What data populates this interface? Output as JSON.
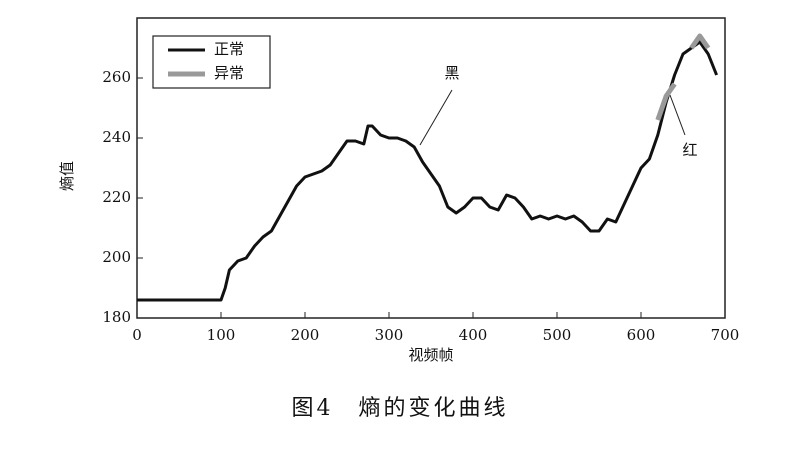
{
  "chart_data": {
    "type": "line",
    "title": "图4　熵的变化曲线",
    "x_label": "视频帧",
    "y_label": "熵值",
    "annotations": [
      "黑",
      "红"
    ],
    "x": [
      0,
      50,
      100,
      105,
      110,
      120,
      130,
      140,
      150,
      160,
      170,
      180,
      190,
      200,
      210,
      220,
      230,
      240,
      250,
      260,
      270,
      275,
      280,
      290,
      300,
      310,
      320,
      330,
      340,
      350,
      360,
      370,
      380,
      390,
      400,
      410,
      420,
      430,
      440,
      450,
      460,
      470,
      480,
      490,
      500,
      510,
      520,
      530,
      540,
      550,
      560,
      570,
      580,
      590,
      600,
      610,
      620,
      630,
      640,
      650,
      660,
      670,
      680,
      690
    ],
    "series": [
      {
        "name": "正常",
        "color": "#111111",
        "values": [
          186,
          186,
          186,
          190,
          196,
          199,
          200,
          204,
          207,
          209,
          214,
          219,
          224,
          227,
          228,
          229,
          231,
          235,
          239,
          239,
          238,
          244,
          244,
          241,
          240,
          240,
          239,
          237,
          232,
          228,
          224,
          217,
          215,
          217,
          220,
          220,
          217,
          216,
          221,
          220,
          217,
          213,
          214,
          213,
          214,
          213,
          214,
          212,
          209,
          209,
          213,
          212,
          218,
          224,
          230,
          233,
          241,
          252,
          261,
          268,
          270,
          272,
          268,
          261
        ]
      },
      {
        "name": "异常",
        "color": "#999999",
        "values": [
          null,
          null,
          null,
          null,
          null,
          null,
          null,
          null,
          null,
          null,
          null,
          null,
          null,
          null,
          null,
          null,
          null,
          null,
          null,
          null,
          null,
          null,
          null,
          null,
          null,
          null,
          null,
          null,
          null,
          null,
          null,
          null,
          null,
          null,
          null,
          null,
          null,
          null,
          null,
          null,
          null,
          null,
          null,
          null,
          null,
          null,
          null,
          null,
          null,
          null,
          null,
          null,
          null,
          null,
          null,
          null,
          246,
          254,
          258,
          null,
          270,
          274,
          270,
          null
        ]
      }
    ],
    "xlim": [
      0,
      700
    ],
    "xticks": [
      0,
      100,
      200,
      300,
      400,
      500,
      600,
      700
    ],
    "ylim": [
      180,
      280
    ],
    "yticks": [
      180,
      200,
      220,
      240,
      260
    ],
    "grid": false,
    "legend": "upper-left"
  }
}
